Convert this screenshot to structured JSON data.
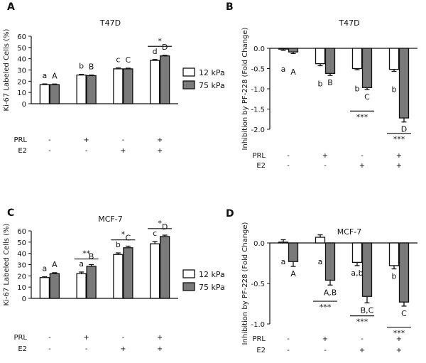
{
  "colors": {
    "bar12": "#ffffff",
    "bar75": "#7a7a7a",
    "stroke": "#111111"
  },
  "chart_data": [
    {
      "panel": "A",
      "type": "bar",
      "title": "T47D",
      "ylabel": "Ki-67 Labeled Cells (%)",
      "ylim": [
        0,
        60
      ],
      "yticks": [
        "0",
        "10",
        "20",
        "30",
        "40",
        "50",
        "60"
      ],
      "row_labels": [
        "PRL",
        "E2"
      ],
      "treatments": [
        [
          "-",
          "-"
        ],
        [
          "+",
          "-"
        ],
        [
          "-",
          "+"
        ],
        [
          "+",
          "+"
        ]
      ],
      "legend": [
        "12 kPa",
        "75 kPa"
      ],
      "series": [
        {
          "name": "12 kPa",
          "values": [
            17,
            25.5,
            31,
            38.5
          ],
          "errors": [
            0.6,
            0.6,
            0.8,
            0.8
          ],
          "letters": [
            "a",
            "b",
            "c",
            "d"
          ]
        },
        {
          "name": "75 kPa",
          "values": [
            17,
            25,
            31,
            42.5
          ],
          "errors": [
            0.5,
            0.5,
            0.6,
            0.6
          ],
          "letters": [
            "A",
            "B",
            "C",
            "D"
          ]
        }
      ],
      "brackets": [
        {
          "group": 4,
          "label": "*",
          "y": 51
        }
      ]
    },
    {
      "panel": "B",
      "type": "bar",
      "title": "T47D",
      "ylabel": "Inhibition by PF-228 (Fold Change)",
      "ylim": [
        -2.0,
        0.0
      ],
      "yticks": [
        "0.0",
        "-0.5",
        "-1.0",
        "-1.5",
        "-2.0"
      ],
      "row_labels": [
        "PRL",
        "E2"
      ],
      "treatments": [
        [
          "-",
          "-"
        ],
        [
          "+",
          "-"
        ],
        [
          "-",
          "+"
        ],
        [
          "+",
          "+"
        ]
      ],
      "series": [
        {
          "name": "12 kPa",
          "values": [
            -0.02,
            -0.38,
            -0.5,
            -0.52
          ],
          "errors": [
            0.03,
            0.05,
            0.03,
            0.05
          ],
          "letters": [
            "a",
            "b",
            "b",
            "b"
          ]
        },
        {
          "name": "75 kPa",
          "values": [
            -0.09,
            -0.62,
            -0.97,
            -1.72
          ],
          "errors": [
            0.04,
            0.05,
            0.05,
            0.1
          ],
          "letters": [
            "A",
            "B",
            "C",
            "D"
          ]
        }
      ],
      "brackets": [
        {
          "group": 3,
          "label": "***",
          "y": -1.55
        },
        {
          "group": 4,
          "label": "***",
          "y": -2.1
        }
      ]
    },
    {
      "panel": "C",
      "type": "bar",
      "title": "MCF-7",
      "ylabel": "Ki-67 Labeled Cells (%)",
      "ylim": [
        0,
        60
      ],
      "yticks": [
        "0",
        "10",
        "20",
        "30",
        "40",
        "50",
        "60"
      ],
      "row_labels": [
        "PRL",
        "E2"
      ],
      "treatments": [
        [
          "-",
          "-"
        ],
        [
          "+",
          "-"
        ],
        [
          "-",
          "+"
        ],
        [
          "+",
          "+"
        ]
      ],
      "legend": [
        "12 kPa",
        "75 kPa"
      ],
      "series": [
        {
          "name": "12 kPa",
          "values": [
            18.5,
            22,
            39,
            48.5
          ],
          "errors": [
            0.7,
            1.4,
            1.4,
            2.0
          ],
          "letters": [
            "a",
            "a",
            "b",
            "c"
          ]
        },
        {
          "name": "75 kPa",
          "values": [
            22,
            28.5,
            45,
            55
          ],
          "errors": [
            0.8,
            1.5,
            1.4,
            1.2
          ],
          "letters": [
            "A",
            "B",
            "C",
            "D"
          ]
        }
      ],
      "brackets": [
        {
          "group": 2,
          "label": "**",
          "y": 35
        },
        {
          "group": 3,
          "label": "*",
          "y": 52
        },
        {
          "group": 4,
          "label": "*",
          "y": 62
        }
      ]
    },
    {
      "panel": "D",
      "type": "bar",
      "title": "MCF-7",
      "ylabel": "Inhibition by PF-228 (Fold Change)",
      "ylim": [
        -1.0,
        0.0
      ],
      "yticks": [
        "0.0",
        "-0.5",
        "-1.0"
      ],
      "row_labels": [
        "PRL",
        "E2"
      ],
      "treatments": [
        [
          "-",
          "-"
        ],
        [
          "+",
          "-"
        ],
        [
          "-",
          "+"
        ],
        [
          "+",
          "+"
        ]
      ],
      "series": [
        {
          "name": "12 kPa",
          "values": [
            0.01,
            0.07,
            -0.24,
            -0.28
          ],
          "errors": [
            0.03,
            0.03,
            0.04,
            0.04
          ],
          "letters": [
            "a",
            "a",
            "a,b",
            "b"
          ]
        },
        {
          "name": "75 kPa",
          "values": [
            -0.23,
            -0.46,
            -0.66,
            -0.73
          ],
          "errors": [
            0.06,
            0.06,
            0.08,
            0.05
          ],
          "letters": [
            "A",
            "A,B",
            "B,C",
            "C"
          ]
        }
      ],
      "brackets": [
        {
          "group": 2,
          "label": "***",
          "y": -0.72
        },
        {
          "group": 3,
          "label": "***",
          "y": -0.9
        },
        {
          "group": 4,
          "label": "***",
          "y": -1.04
        }
      ]
    }
  ]
}
